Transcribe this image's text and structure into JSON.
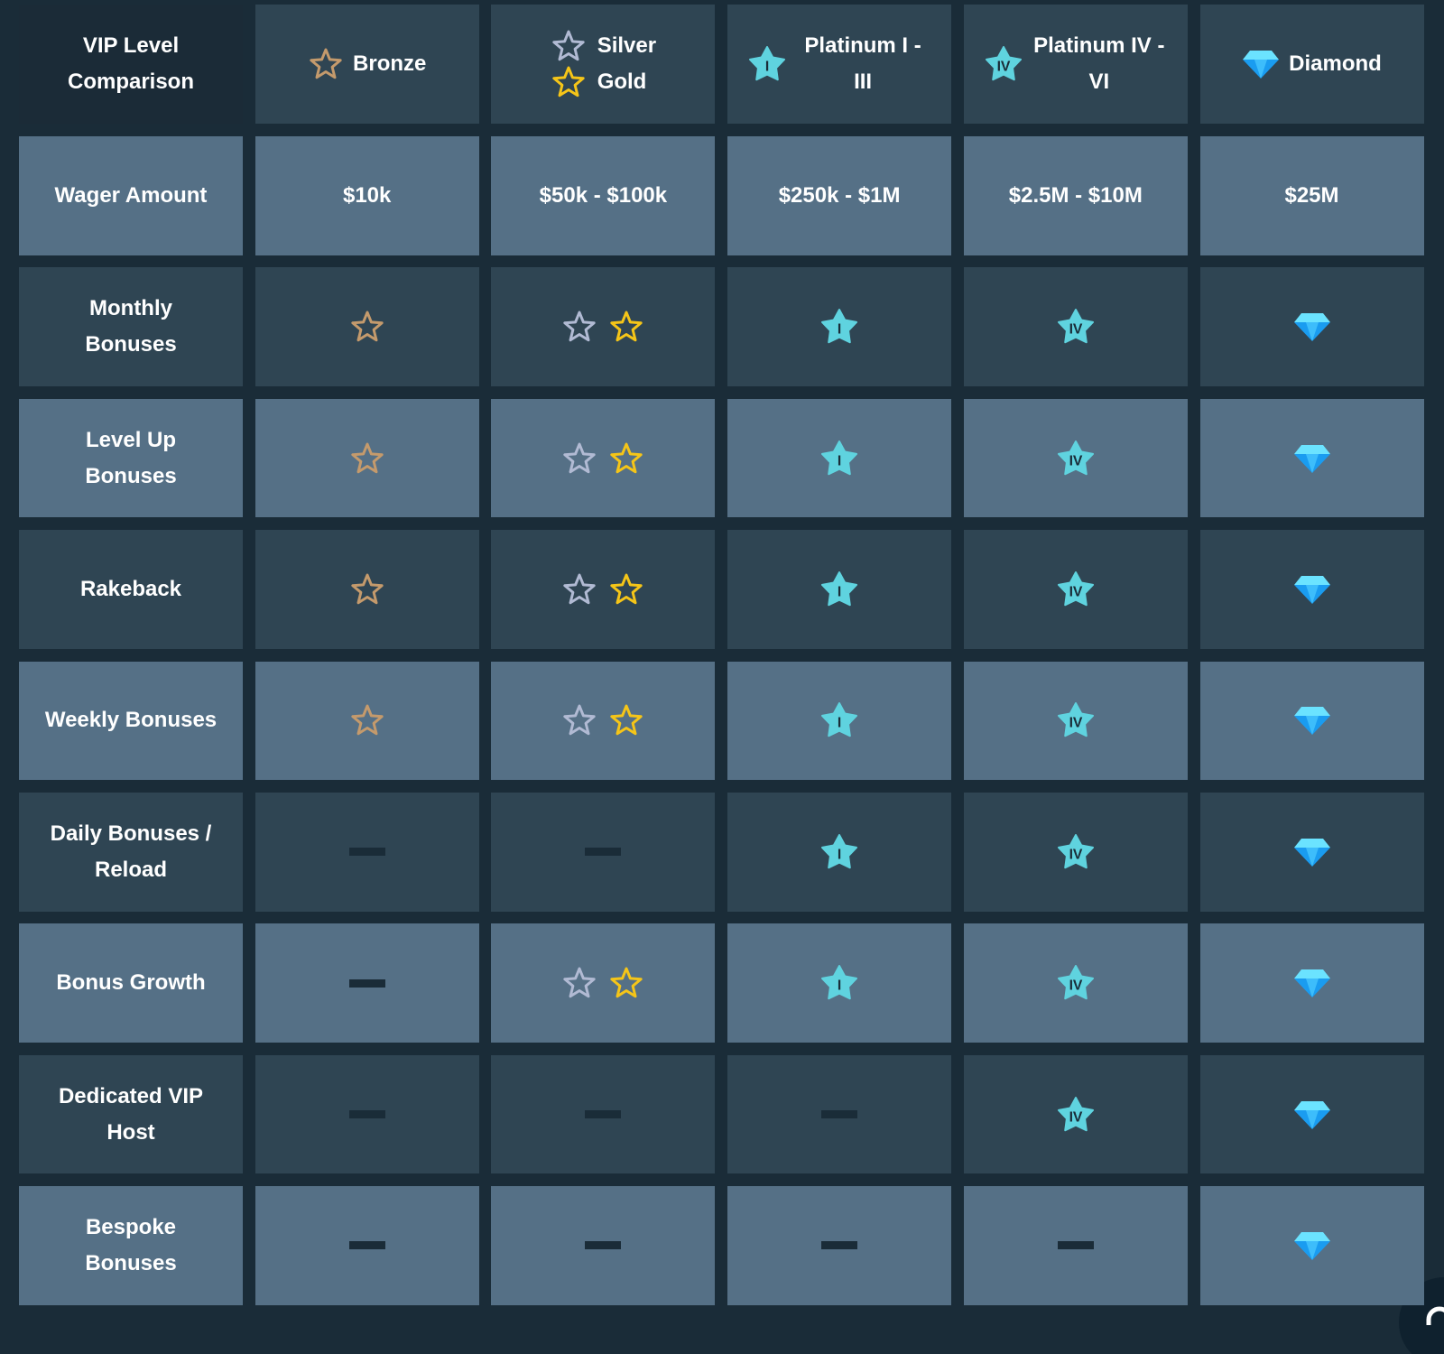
{
  "header": {
    "title": "VIP Level Comparison",
    "tiers": [
      {
        "names": [
          "Bronze"
        ],
        "icon": "bronze"
      },
      {
        "names": [
          "Silver",
          "Gold"
        ],
        "icon": "silver-gold"
      },
      {
        "names": [
          "Platinum I - III"
        ],
        "icon": "platinum",
        "badge": "I"
      },
      {
        "names": [
          "Platinum IV - VI"
        ],
        "icon": "platinum",
        "badge": "IV"
      },
      {
        "names": [
          "Diamond"
        ],
        "icon": "diamond"
      }
    ]
  },
  "table": {
    "rows": [
      {
        "label": "Wager Amount",
        "cells": [
          "$10k",
          "$50k - $100k",
          "$250k - $1M",
          "$2.5M - $10M",
          "$25M"
        ]
      },
      {
        "label": "Monthly Bonuses",
        "cells": [
          true,
          true,
          true,
          true,
          true
        ]
      },
      {
        "label": "Level Up Bonuses",
        "cells": [
          true,
          true,
          true,
          true,
          true
        ]
      },
      {
        "label": "Rakeback",
        "cells": [
          true,
          true,
          true,
          true,
          true
        ]
      },
      {
        "label": "Weekly Bonuses",
        "cells": [
          true,
          true,
          true,
          true,
          true
        ]
      },
      {
        "label": "Daily Bonuses / Reload",
        "cells": [
          false,
          false,
          true,
          true,
          true
        ]
      },
      {
        "label": "Bonus Growth",
        "cells": [
          false,
          true,
          true,
          true,
          true
        ]
      },
      {
        "label": "Dedicated VIP Host",
        "cells": [
          false,
          false,
          false,
          true,
          true
        ]
      },
      {
        "label": "Bespoke Bonuses",
        "cells": [
          false,
          false,
          false,
          false,
          true
        ]
      }
    ]
  }
}
